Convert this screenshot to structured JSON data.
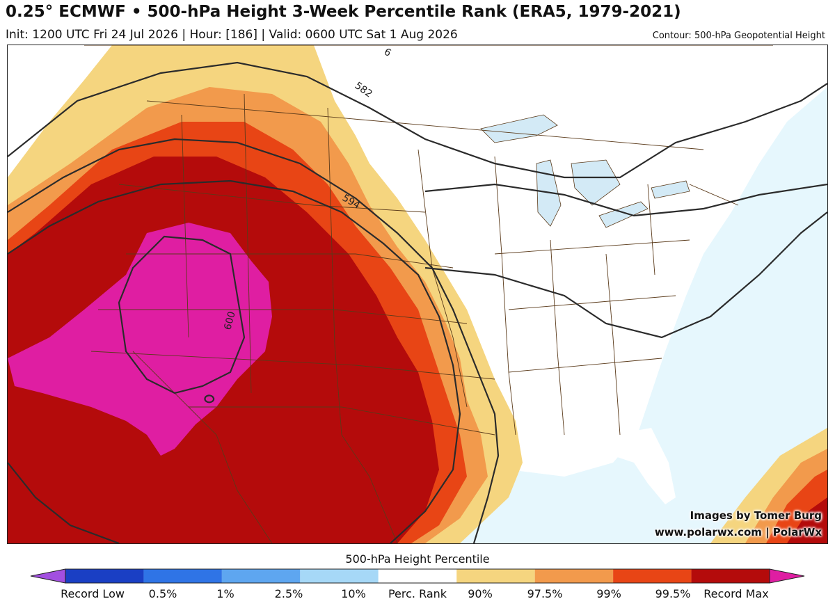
{
  "header": {
    "title": "0.25° ECMWF • 500-hPa Height 3-Week Percentile Rank (ERA5, 1979-2021)",
    "subtitle": "Init: 1200 UTC Fri 24 Jul 2026 | Hour: [186] | Valid: 0600 UTC Sat 1 Aug 2026",
    "contour_note": "Contour: 500-hPa Geopotential Height"
  },
  "map": {
    "contour_labels": [
      "582",
      "594",
      "600",
      "6"
    ],
    "credit_line_1": "Images by Tomer Burg",
    "credit_line_2": "www.polarwx.com | PolarWx",
    "colors": {
      "ocean": "#e6f7fd",
      "land": "#ffffff",
      "lakes": "#d3eaf6",
      "boundaries": "#5a3a1a",
      "contours": "#2b2b2b"
    }
  },
  "colorbar": {
    "title": "500-hPa Height Percentile",
    "labels": [
      "Record Low",
      "0.5%",
      "1%",
      "2.5%",
      "10%",
      "Perc. Rank",
      "90%",
      "97.5%",
      "99%",
      "99.5%",
      "Record Max"
    ],
    "colors": [
      "#a24fe0",
      "#1a3fc4",
      "#2f74e6",
      "#5ea6f0",
      "#a6d8f7",
      "#ffffff",
      "#f5d57f",
      "#f29a4c",
      "#e84515",
      "#b40b0b",
      "#df1ea2"
    ]
  }
}
